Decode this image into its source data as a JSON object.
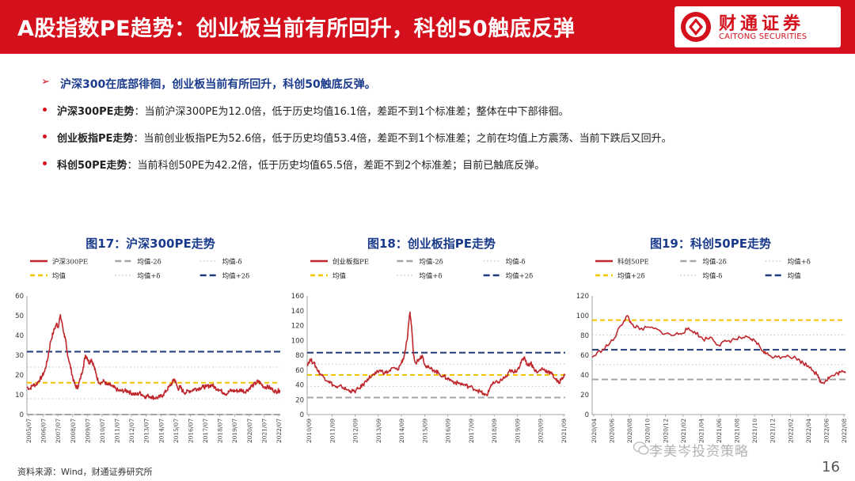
{
  "header": {
    "title": "A股指数PE趋势：创业板当前有所回升，科创50触底反弹",
    "logo_cn": "财通证券",
    "logo_en": "CAITONG SECURITIES",
    "brand_color": "#d3101b"
  },
  "summary": {
    "headline": "沪深300在底部徘徊，创业板当前有所回升，科创50触底反弹。",
    "bullets": [
      {
        "head": "沪深300PE走势",
        "text": "：当前沪深300PE为12.0倍，低于历史均值16.1倍，差距不到1个标准差；整体在中下部徘徊。"
      },
      {
        "head": "创业板指PE走势",
        "text": "：当前创业板指PE为52.6倍，低于历史均值53.4倍，差距不到1个标准差；之前在均值上方震荡、当前下跌后又回升。"
      },
      {
        "head": "科创50PE走势",
        "text": "：当前科创50PE为42.2倍，低于历史均值65.5倍，差距不到2个标准差；目前已触底反弹。"
      }
    ]
  },
  "footer": {
    "source": "资料来源：Wind，财通证券研究所",
    "watermark": "李美岑投资策略",
    "page": "16"
  },
  "chart_data": [
    {
      "type": "line",
      "title": "图17：沪深300PE走势",
      "ylim": [
        0,
        60
      ],
      "yticks": [
        "0",
        "10",
        "20",
        "30",
        "40",
        "50",
        "60"
      ],
      "xticks": [
        "2005/07",
        "2006/07",
        "2007/07",
        "2008/07",
        "2009/07",
        "2010/07",
        "2011/07",
        "2012/07",
        "2013/07",
        "2014/07",
        "2015/07",
        "2016/07",
        "2017/07",
        "2018/07",
        "2019/07",
        "2020/07",
        "2021/07",
        "2022/07"
      ],
      "x_range": [
        2005.5,
        2022.6
      ],
      "legend": [
        {
          "name": "沪深300PE",
          "style": "solid",
          "color": "#c0272d"
        },
        {
          "name": "均值-2δ",
          "style": "longdash",
          "color": "#a6a6a6"
        },
        {
          "name": "均值-δ",
          "style": "dot",
          "color": "#bfbfbf"
        },
        {
          "name": "均值",
          "style": "dash",
          "color": "#f5c400"
        },
        {
          "name": "均值+δ",
          "style": "dot",
          "color": "#bfbfbf"
        },
        {
          "name": "均值+2δ",
          "style": "longdash",
          "color": "#1f3b7a"
        }
      ],
      "bands": {
        "mean": 16.1,
        "m_minus_2sd": 0,
        "m_minus_sd": 8,
        "m_plus_sd": 24,
        "m_plus_2sd": 31.8
      },
      "series": [
        {
          "name": "沪深300PE",
          "points": [
            [
              2005.5,
              14
            ],
            [
              2005.7,
              13
            ],
            [
              2005.9,
              15
            ],
            [
              2006.1,
              15
            ],
            [
              2006.3,
              17
            ],
            [
              2006.5,
              19
            ],
            [
              2006.7,
              22
            ],
            [
              2006.9,
              28
            ],
            [
              2007.1,
              37
            ],
            [
              2007.3,
              42
            ],
            [
              2007.5,
              46
            ],
            [
              2007.6,
              44
            ],
            [
              2007.75,
              50
            ],
            [
              2007.85,
              47
            ],
            [
              2008.0,
              41
            ],
            [
              2008.1,
              38
            ],
            [
              2008.2,
              32
            ],
            [
              2008.35,
              27
            ],
            [
              2008.5,
              22
            ],
            [
              2008.65,
              17
            ],
            [
              2008.8,
              14
            ],
            [
              2008.95,
              14
            ],
            [
              2009.1,
              18
            ],
            [
              2009.3,
              24
            ],
            [
              2009.45,
              30
            ],
            [
              2009.55,
              29
            ],
            [
              2009.7,
              26
            ],
            [
              2009.85,
              28
            ],
            [
              2010.0,
              25
            ],
            [
              2010.15,
              21
            ],
            [
              2010.3,
              17
            ],
            [
              2010.5,
              16
            ],
            [
              2010.7,
              17
            ],
            [
              2010.9,
              15
            ],
            [
              2011.1,
              15
            ],
            [
              2011.3,
              14
            ],
            [
              2011.5,
              13
            ],
            [
              2011.7,
              12
            ],
            [
              2011.9,
              12
            ],
            [
              2012.1,
              12
            ],
            [
              2012.3,
              12
            ],
            [
              2012.5,
              11
            ],
            [
              2012.7,
              10.5
            ],
            [
              2012.9,
              10
            ],
            [
              2013.1,
              11
            ],
            [
              2013.3,
              10
            ],
            [
              2013.5,
              9
            ],
            [
              2013.7,
              9.5
            ],
            [
              2013.9,
              9
            ],
            [
              2014.1,
              8.5
            ],
            [
              2014.3,
              8.5
            ],
            [
              2014.5,
              9
            ],
            [
              2014.7,
              10
            ],
            [
              2014.9,
              12
            ],
            [
              2015.1,
              14
            ],
            [
              2015.3,
              16
            ],
            [
              2015.45,
              18
            ],
            [
              2015.55,
              16
            ],
            [
              2015.7,
              13
            ],
            [
              2015.85,
              14
            ],
            [
              2016.0,
              12
            ],
            [
              2016.2,
              11
            ],
            [
              2016.4,
              12
            ],
            [
              2016.6,
              12
            ],
            [
              2016.8,
              13
            ],
            [
              2017.0,
              13
            ],
            [
              2017.2,
              13.5
            ],
            [
              2017.4,
              14
            ],
            [
              2017.6,
              14
            ],
            [
              2017.8,
              14.5
            ],
            [
              2018.0,
              15
            ],
            [
              2018.2,
              13.5
            ],
            [
              2018.4,
              13
            ],
            [
              2018.6,
              12
            ],
            [
              2018.8,
              11
            ],
            [
              2019.0,
              10.5
            ],
            [
              2019.2,
              12
            ],
            [
              2019.4,
              12
            ],
            [
              2019.6,
              12
            ],
            [
              2019.8,
              12
            ],
            [
              2020.0,
              12.5
            ],
            [
              2020.2,
              11.5
            ],
            [
              2020.4,
              12.5
            ],
            [
              2020.6,
              14
            ],
            [
              2020.8,
              15
            ],
            [
              2021.0,
              16
            ],
            [
              2021.1,
              17
            ],
            [
              2021.3,
              15.5
            ],
            [
              2021.5,
              14
            ],
            [
              2021.7,
              14
            ],
            [
              2021.9,
              13.5
            ],
            [
              2022.1,
              12.5
            ],
            [
              2022.3,
              11.5
            ],
            [
              2022.45,
              12
            ],
            [
              2022.6,
              12
            ]
          ]
        }
      ]
    },
    {
      "type": "line",
      "title": "图18：创业板指PE走势",
      "ylim": [
        0,
        160
      ],
      "yticks": [
        "0",
        "20",
        "40",
        "60",
        "80",
        "100",
        "120",
        "140",
        "160"
      ],
      "xticks": [
        "2010/09",
        "2011/09",
        "2012/09",
        "2013/09",
        "2014/09",
        "2015/09",
        "2016/09",
        "2017/09",
        "2018/09",
        "2019/09",
        "2020/09",
        "2021/09"
      ],
      "x_range": [
        2010.6,
        2022.6
      ],
      "legend": [
        {
          "name": "创业板指PE",
          "style": "solid",
          "color": "#c0272d"
        },
        {
          "name": "均值-2δ",
          "style": "longdash",
          "color": "#a6a6a6"
        },
        {
          "name": "均值-δ",
          "style": "dot",
          "color": "#bfbfbf"
        },
        {
          "name": "均值",
          "style": "dash",
          "color": "#f5c400"
        },
        {
          "name": "均值+δ",
          "style": "dot",
          "color": "#bfbfbf"
        },
        {
          "name": "均值+2δ",
          "style": "longdash",
          "color": "#1f3b7a"
        }
      ],
      "bands": {
        "mean": 53.4,
        "m_minus_2sd": 23,
        "m_minus_sd": 38,
        "m_plus_sd": 68,
        "m_plus_2sd": 83.5
      },
      "series": [
        {
          "name": "创业板指PE",
          "points": [
            [
              2010.6,
              68
            ],
            [
              2010.75,
              74
            ],
            [
              2010.9,
              70
            ],
            [
              2011.05,
              62
            ],
            [
              2011.2,
              55
            ],
            [
              2011.4,
              50
            ],
            [
              2011.6,
              45
            ],
            [
              2011.8,
              40
            ],
            [
              2012.0,
              36
            ],
            [
              2012.2,
              38
            ],
            [
              2012.4,
              34
            ],
            [
              2012.6,
              32
            ],
            [
              2012.8,
              31
            ],
            [
              2013.0,
              35
            ],
            [
              2013.2,
              40
            ],
            [
              2013.4,
              48
            ],
            [
              2013.6,
              52
            ],
            [
              2013.8,
              55
            ],
            [
              2014.0,
              60
            ],
            [
              2014.2,
              56
            ],
            [
              2014.4,
              58
            ],
            [
              2014.6,
              63
            ],
            [
              2014.8,
              60
            ],
            [
              2014.95,
              68
            ],
            [
              2015.1,
              78
            ],
            [
              2015.25,
              100
            ],
            [
              2015.38,
              138
            ],
            [
              2015.45,
              120
            ],
            [
              2015.55,
              80
            ],
            [
              2015.65,
              70
            ],
            [
              2015.8,
              75
            ],
            [
              2015.95,
              80
            ],
            [
              2016.1,
              66
            ],
            [
              2016.3,
              62
            ],
            [
              2016.5,
              60
            ],
            [
              2016.7,
              56
            ],
            [
              2016.9,
              52
            ],
            [
              2017.1,
              49
            ],
            [
              2017.3,
              46
            ],
            [
              2017.5,
              43
            ],
            [
              2017.7,
              42
            ],
            [
              2017.9,
              40
            ],
            [
              2018.1,
              38
            ],
            [
              2018.3,
              36
            ],
            [
              2018.5,
              33
            ],
            [
              2018.7,
              30
            ],
            [
              2018.85,
              26
            ],
            [
              2019.0,
              28
            ],
            [
              2019.15,
              40
            ],
            [
              2019.3,
              42
            ],
            [
              2019.5,
              44
            ],
            [
              2019.7,
              48
            ],
            [
              2019.9,
              52
            ],
            [
              2020.05,
              60
            ],
            [
              2020.2,
              56
            ],
            [
              2020.4,
              62
            ],
            [
              2020.55,
              70
            ],
            [
              2020.7,
              78
            ],
            [
              2020.85,
              66
            ],
            [
              2021.0,
              70
            ],
            [
              2021.1,
              64
            ],
            [
              2021.3,
              56
            ],
            [
              2021.5,
              62
            ],
            [
              2021.65,
              60
            ],
            [
              2021.8,
              58
            ],
            [
              2022.0,
              54
            ],
            [
              2022.15,
              48
            ],
            [
              2022.3,
              42
            ],
            [
              2022.45,
              50
            ],
            [
              2022.6,
              53
            ]
          ]
        }
      ]
    },
    {
      "type": "line",
      "title": "图19：科创50PE走势",
      "ylim": [
        0,
        120
      ],
      "yticks": [
        "0",
        "20",
        "40",
        "60",
        "80",
        "100",
        "120"
      ],
      "xticks": [
        "2020/04",
        "2020/06",
        "2020/08",
        "2020/10",
        "2020/12",
        "2021/02",
        "2021/04",
        "2021/06",
        "2021/08",
        "2021/10",
        "2021/12",
        "2022/02",
        "2022/04",
        "2022/06",
        "2022/08"
      ],
      "x_range": [
        2020.25,
        2022.65
      ],
      "legend": [
        {
          "name": "科创50PE",
          "style": "solid",
          "color": "#c0272d"
        },
        {
          "name": "均值-2δ",
          "style": "longdash",
          "color": "#a6a6a6"
        },
        {
          "name": "均值+δ",
          "style": "dot",
          "color": "#bfbfbf"
        },
        {
          "name": "均值+2δ",
          "style": "dash",
          "color": "#f5c400"
        },
        {
          "name": "均值-δ",
          "style": "dot",
          "color": "#bfbfbf"
        },
        {
          "name": "均值",
          "style": "longdash",
          "color": "#1f3b7a"
        }
      ],
      "bands": {
        "mean": 65.5,
        "m_minus_2sd": 35.5,
        "m_minus_sd": 50.5,
        "m_plus_sd": 80.5,
        "m_plus_2sd": 95.5
      },
      "series": [
        {
          "name": "科创50PE",
          "points": [
            [
              2020.25,
              58
            ],
            [
              2020.35,
              66
            ],
            [
              2020.45,
              75
            ],
            [
              2020.52,
              90
            ],
            [
              2020.58,
              100
            ],
            [
              2020.62,
              92
            ],
            [
              2020.7,
              86
            ],
            [
              2020.8,
              88
            ],
            [
              2020.9,
              84
            ],
            [
              2021.0,
              80
            ],
            [
              2021.08,
              82
            ],
            [
              2021.15,
              86
            ],
            [
              2021.22,
              84
            ],
            [
              2021.3,
              76
            ],
            [
              2021.38,
              78
            ],
            [
              2021.45,
              70
            ],
            [
              2021.52,
              74
            ],
            [
              2021.6,
              76
            ],
            [
              2021.68,
              78
            ],
            [
              2021.75,
              76
            ],
            [
              2021.8,
              74
            ],
            [
              2021.87,
              64
            ],
            [
              2021.92,
              60
            ],
            [
              2022.0,
              58
            ],
            [
              2022.1,
              60
            ],
            [
              2022.18,
              57
            ],
            [
              2022.25,
              52
            ],
            [
              2022.32,
              48
            ],
            [
              2022.38,
              40
            ],
            [
              2022.42,
              32
            ],
            [
              2022.46,
              34
            ],
            [
              2022.5,
              38
            ],
            [
              2022.55,
              40
            ],
            [
              2022.6,
              43
            ],
            [
              2022.65,
              42
            ]
          ]
        }
      ]
    }
  ]
}
